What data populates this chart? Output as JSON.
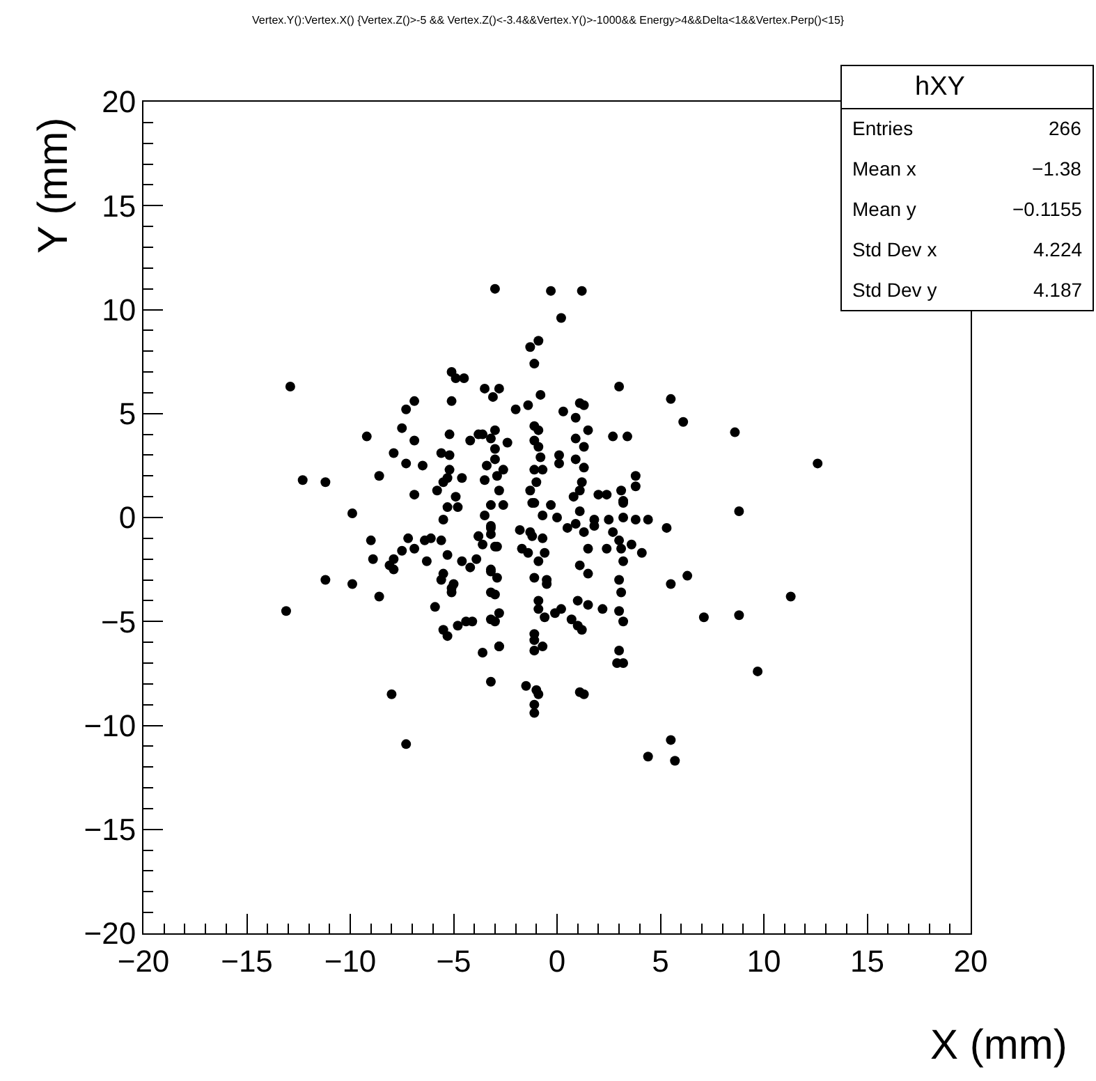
{
  "chart_data": {
    "type": "scatter",
    "title": "Vertex.Y():Vertex.X() {Vertex.Z()>-5 && Vertex.Z()<-3.4&&Vertex.Y()>-1000&& Energy>4&&Delta<1&&Vertex.Perp()<15}",
    "xlabel": "X (mm)",
    "ylabel": "Y (mm)",
    "xlim": [
      -20,
      20
    ],
    "ylim": [
      -20,
      20
    ],
    "xticks": [
      {
        "value": -20,
        "label": "−20"
      },
      {
        "value": -15,
        "label": "−15"
      },
      {
        "value": -10,
        "label": "−10"
      },
      {
        "value": -5,
        "label": "−5"
      },
      0,
      5,
      10,
      15,
      20
    ],
    "yticks": [
      {
        "value": -20,
        "label": "−20"
      },
      {
        "value": -15,
        "label": "−15"
      },
      {
        "value": -10,
        "label": "−10"
      },
      {
        "value": -5,
        "label": "−5"
      },
      0,
      5,
      10,
      15,
      20
    ],
    "marker": "circle",
    "annotations": [
      "hXY",
      "Entries",
      "266",
      "Mean x",
      "−1.38",
      "Mean y",
      "−0.1155",
      "Std Dev x",
      "4.224",
      "Std Dev y",
      "4.187"
    ],
    "series": [
      {
        "color": "#000000",
        "x": [
          -3.0,
          -0.3,
          1.2,
          0.2,
          -1.3,
          -0.9,
          -1.1,
          -3.5,
          -2.8,
          -3.1,
          -2.0,
          -1.4,
          -0.8,
          0.3,
          0.9,
          1.1,
          1.3,
          1.5,
          3.0,
          5.5,
          6.1,
          8.6,
          2.7,
          3.4,
          0.1,
          0.1,
          0.9,
          1.3,
          0.9,
          1.3,
          -1.1,
          -0.9,
          -1.1,
          -0.9,
          -0.8,
          -1.1,
          -0.7,
          -3.0,
          -3.2,
          -2.4,
          -3.0,
          -3.0,
          -3.4,
          -2.6,
          -3.5,
          -2.9,
          -3.8,
          3.8,
          3.8,
          1.2,
          1.1,
          0.8,
          2.0,
          2.4,
          3.1,
          3.2,
          -1.0,
          -1.3,
          -1.2,
          -0.3,
          -2.8,
          -3.2,
          -2.6,
          8.8,
          -12.9,
          -5.1,
          -4.9,
          -4.5,
          -6.9,
          -7.3,
          -5.1,
          -7.5,
          -9.2,
          -6.9,
          -5.2,
          -4.2,
          -3.6,
          -7.9,
          -7.3,
          -6.5,
          -5.6,
          -5.2,
          -5.2,
          -5.3,
          -5.5,
          -4.6,
          -8.6,
          -12.3,
          -11.2,
          -6.9,
          -5.8,
          -4.9,
          -5.3,
          -4.8,
          -9.9,
          -9.0,
          -8.9,
          -7.2,
          -7.5,
          -6.9,
          -7.9,
          -8.1,
          -7.9,
          -6.4,
          -6.1,
          -5.6,
          -6.3,
          -5.3,
          -4.6,
          -4.2,
          -3.9,
          -3.8,
          -3.6,
          -5.5,
          -5.6,
          -5.1,
          -5.0,
          -5.1,
          -5.9,
          -5.5,
          -5.3,
          -4.8,
          -4.4,
          -4.1,
          -11.2,
          -9.9,
          -8.6,
          -13.1,
          -3.6,
          -3.2,
          -8.0,
          -7.3,
          -5.5,
          -3.2,
          -3.0,
          -3.2,
          -3.0,
          -3.2,
          -2.8,
          -3.5,
          -3.2,
          -3.2,
          -2.9,
          -3.8,
          -3.2,
          -2.9,
          -3.2,
          -2.8,
          -3.0,
          -2.8,
          -1.1,
          -0.7,
          0.0,
          -1.8,
          -1.3,
          -1.2,
          -0.7,
          -1.7,
          -1.4,
          -0.6,
          -0.9,
          -1.1,
          -0.5,
          -0.5,
          -0.9,
          -0.9,
          -0.6,
          -0.1,
          0.2,
          -1.1,
          -1.1,
          -0.7,
          -1.1,
          -1.5,
          -1.0,
          -0.9,
          -1.1,
          -1.1,
          0.5,
          0.9,
          1.3,
          1.8,
          1.8,
          1.1,
          1.5,
          1.1,
          1.5,
          1.0,
          1.5,
          2.2,
          0.7,
          1.0,
          1.2,
          1.1,
          1.3,
          2.5,
          2.7,
          3.2,
          3.2,
          3.0,
          3.6,
          3.8,
          4.4,
          2.4,
          3.1,
          4.1,
          3.2,
          5.3,
          3.0,
          3.1,
          3.0,
          3.2,
          3.0,
          2.9,
          3.2,
          5.5,
          6.3,
          7.1,
          8.8,
          9.7,
          11.3,
          12.6,
          4.4,
          5.5,
          5.7
        ],
        "values": [
          11.0,
          10.9,
          10.9,
          9.6,
          8.2,
          8.5,
          7.4,
          6.2,
          6.2,
          5.8,
          5.2,
          5.4,
          5.9,
          5.1,
          4.8,
          5.5,
          5.4,
          4.2,
          6.3,
          5.7,
          4.6,
          4.1,
          3.9,
          3.9,
          3.0,
          2.6,
          3.8,
          3.4,
          2.8,
          2.4,
          4.4,
          4.2,
          3.7,
          3.4,
          2.9,
          2.3,
          2.3,
          4.2,
          3.8,
          3.6,
          3.3,
          2.8,
          2.5,
          2.3,
          1.8,
          2.0,
          4.0,
          2.0,
          1.5,
          1.7,
          1.3,
          1.0,
          1.1,
          1.1,
          1.3,
          0.8,
          1.7,
          1.3,
          0.7,
          0.6,
          1.3,
          0.6,
          0.6,
          0.3,
          6.3,
          7.0,
          6.7,
          6.7,
          5.6,
          5.2,
          5.6,
          4.3,
          3.9,
          3.7,
          4.0,
          3.7,
          4.0,
          3.1,
          2.6,
          2.5,
          3.1,
          3.0,
          2.3,
          1.9,
          1.7,
          1.9,
          2.0,
          1.8,
          1.7,
          1.1,
          1.3,
          1.0,
          0.5,
          0.5,
          0.2,
          -1.1,
          -2.0,
          -1.0,
          -1.6,
          -1.5,
          -2.0,
          -2.3,
          -2.5,
          -1.1,
          -1.0,
          -1.1,
          -2.1,
          -1.8,
          -2.1,
          -2.4,
          -2.0,
          -0.9,
          -1.3,
          -2.7,
          -3.0,
          -3.4,
          -3.2,
          -3.6,
          -4.3,
          -5.4,
          -5.7,
          -5.2,
          -5.0,
          -5.0,
          -3.0,
          -3.2,
          -3.8,
          -4.5,
          -6.5,
          -7.9,
          -8.5,
          -10.9,
          -0.1,
          -0.5,
          -1.4,
          -2.6,
          -3.7,
          -4.9,
          -6.2,
          0.1,
          -0.4,
          -0.8,
          -1.4,
          -0.9,
          -2.5,
          -2.9,
          -3.6,
          -4.6,
          -5.0,
          -6.2,
          0.7,
          0.1,
          0.0,
          -0.6,
          -0.7,
          -0.9,
          -1.0,
          -1.5,
          -1.7,
          -1.7,
          -2.1,
          -2.9,
          -3.0,
          -3.2,
          -4.0,
          -4.4,
          -4.8,
          -4.6,
          -4.4,
          -5.6,
          -5.9,
          -6.2,
          -6.4,
          -8.1,
          -8.3,
          -8.5,
          -9.0,
          -9.4,
          -0.5,
          -0.3,
          -0.7,
          -0.1,
          -0.4,
          0.3,
          -1.5,
          -2.3,
          -2.7,
          -4.0,
          -4.2,
          -4.4,
          -4.9,
          -5.2,
          -5.4,
          -8.4,
          -8.5,
          -0.1,
          -0.7,
          0.0,
          0.7,
          -1.1,
          -1.3,
          -0.1,
          -0.1,
          -1.5,
          -1.5,
          -1.7,
          -2.1,
          -0.5,
          -3.0,
          -3.6,
          -4.5,
          -5.0,
          -6.4,
          -7.0,
          -7.0,
          -3.2,
          -2.8,
          -4.8,
          -4.7,
          -7.4,
          -3.8,
          2.6,
          -11.5,
          -10.7,
          -11.7
        ]
      }
    ]
  }
}
